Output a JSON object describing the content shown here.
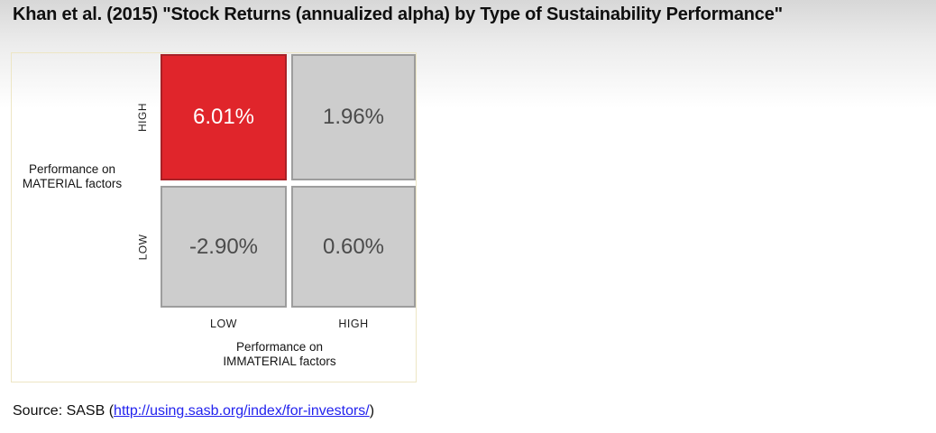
{
  "title": "Khan et al. (2015) \"Stock Returns (annualized alpha) by Type of Sustainability Performance\"",
  "matrix": {
    "y_axis": {
      "label_line1": "Performance on",
      "label_line2": "MATERIAL factors",
      "tick_top": "HIGH",
      "tick_bottom": "LOW"
    },
    "x_axis": {
      "label_line1": "Performance on",
      "label_line2": "IMMATERIAL factors",
      "tick_left": "LOW",
      "tick_right": "HIGH"
    },
    "cells": {
      "high_material_low_immaterial": "6.01%",
      "high_material_high_immaterial": "1.96%",
      "low_material_low_immaterial": "-2.90%",
      "low_material_high_immaterial": "0.60%"
    }
  },
  "colors": {
    "highlight_cell_fill": "#e0252b",
    "highlight_cell_border": "#a82126",
    "gray_cell_fill": "#cdcdcd",
    "gray_cell_border": "#9d9d9d",
    "link_blue": "#2222ee",
    "panel_border": "#ede6c4"
  },
  "source": {
    "prefix": "Source: SASB (",
    "link_text": "http://using.sasb.org/index/for-investors/",
    "suffix": ")"
  },
  "chart_data": {
    "type": "heatmap",
    "title": "Khan et al. (2015) \"Stock Returns (annualized alpha) by Type of Sustainability Performance\"",
    "x_axis": {
      "label": "Performance on IMMATERIAL factors",
      "categories": [
        "LOW",
        "HIGH"
      ]
    },
    "y_axis": {
      "label": "Performance on MATERIAL factors",
      "categories": [
        "HIGH",
        "LOW"
      ]
    },
    "values": [
      [
        6.01,
        1.96
      ],
      [
        -2.9,
        0.6
      ]
    ],
    "value_labels": [
      [
        "6.01%",
        "1.96%"
      ],
      [
        "-2.90%",
        "0.60%"
      ]
    ],
    "unit": "% annualized alpha",
    "highlighted_cell": {
      "row": "HIGH material",
      "col": "LOW immaterial",
      "value": 6.01
    },
    "annotation": "Source: SASB (http://using.sasb.org/index/for-investors/)",
    "legend_position": "none",
    "grid": false
  }
}
